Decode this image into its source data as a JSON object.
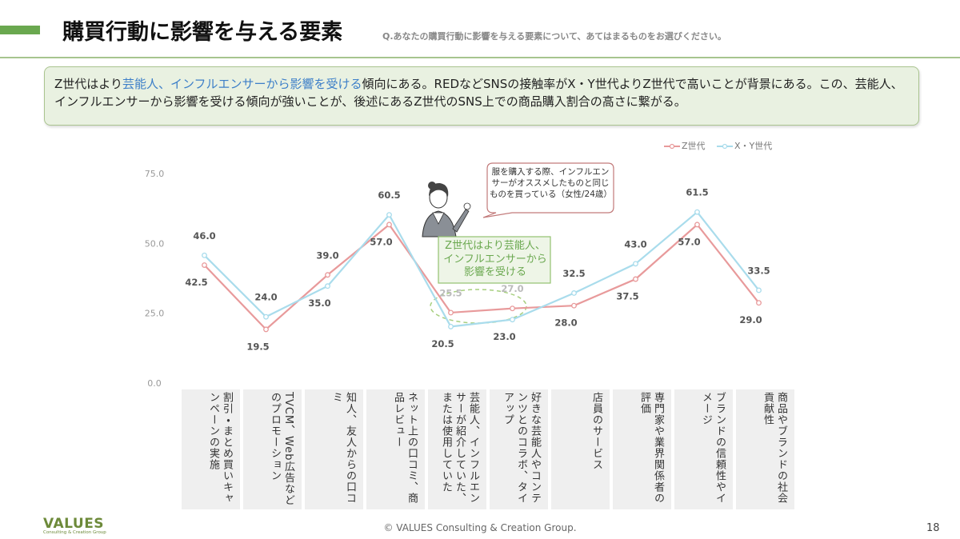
{
  "header": {
    "title": "購買行動に影響を与える要素",
    "question": "Q.あなたの購買行動に影響を与える要素について、あてはまるものをお選びください。"
  },
  "summary": {
    "lead": "Z世代はより",
    "highlight": "芸能人、インフルエンサーから影響を受ける",
    "rest": "傾向にある。REDなどSNSの接触率がX・Y世代よりZ世代で高いことが背景にある。この、芸能人、インフルエンサーから影響を受ける傾向が強いことが、後述にあるZ世代のSNS上での商品購入割合の高さに繋がる。"
  },
  "chart_data": {
    "type": "line",
    "categories": [
      "割引・まとめ買いキャンペーンの実施",
      "TVCM、Web広告などのプロモーション",
      "知人、友人からの口コミ",
      "ネット上の口コミ、商品レビュー",
      "芸能人、インフルエンサーが紹介していた、または使用していた",
      "好きな芸能人やコンテンツとのコラボ、タイアップ",
      "店員のサービス",
      "専門家や業界関係者の評価",
      "ブランドの信頼性やイメージ",
      "商品やブランドの社会貢献性"
    ],
    "series": [
      {
        "name": "Z世代",
        "color": "#e89a9b",
        "values": [
          42.5,
          19.5,
          39.0,
          57.0,
          25.5,
          27.0,
          28.0,
          37.5,
          57.0,
          29.0
        ],
        "value_labels": [
          "42.5",
          "19.5",
          "39.0",
          "57.0",
          "25.5",
          "27.0",
          "28.0",
          "37.5",
          "57.0",
          "29.0"
        ]
      },
      {
        "name": "X・Y世代",
        "color": "#a9dcec",
        "values": [
          46.0,
          24.0,
          35.0,
          60.5,
          20.5,
          23.0,
          32.5,
          43.0,
          61.5,
          33.5
        ],
        "value_labels": [
          "46.0",
          "24.0",
          "35.0",
          "60.5",
          "20.5",
          "23.0",
          "32.5",
          "43.0",
          "61.5",
          "33.5"
        ]
      }
    ],
    "ylim": [
      0,
      75
    ],
    "yticks": [
      {
        "value": 0,
        "label": "0.0"
      },
      {
        "value": 25,
        "label": "25.0"
      },
      {
        "value": 50,
        "label": "50.0"
      },
      {
        "value": 75,
        "label": "75.0"
      }
    ],
    "grid": false,
    "legend": "top-right"
  },
  "callouts": {
    "quote": "服を購入する際、インフルエンサーがオススメしたものと同じものを買っている（女性/24歳）",
    "emphasis": "Z世代はより芸能人、インフルエンサーから影響を受ける"
  },
  "footer": {
    "logo": "VALUES",
    "logo_sub": "Consulting & Creation Group",
    "copyright": "© VALUES Consulting & Creation Group.",
    "page": "18"
  }
}
